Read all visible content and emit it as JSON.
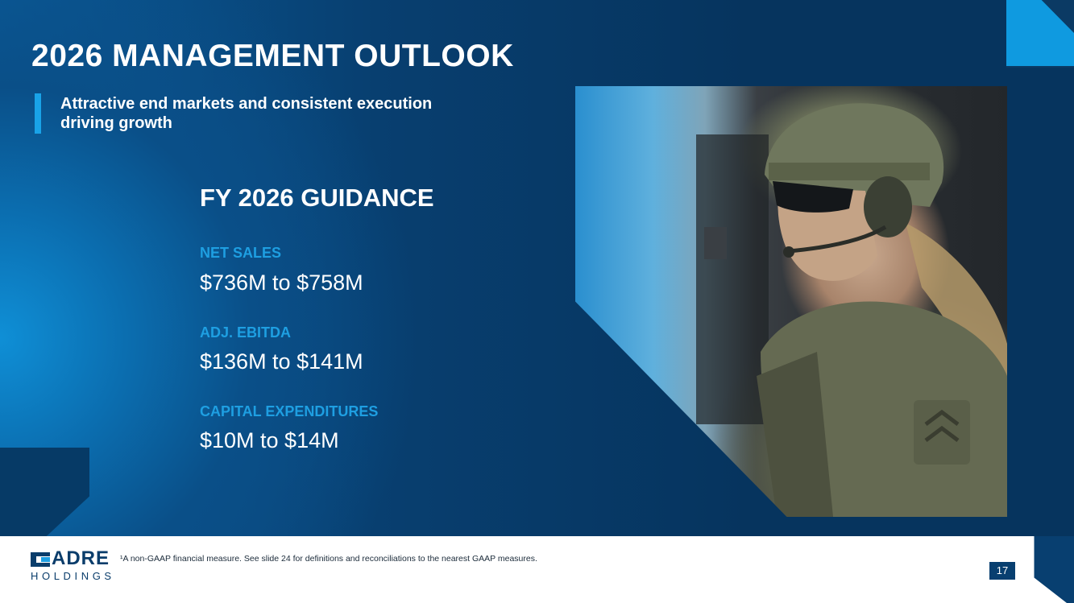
{
  "slide": {
    "title": "2026 MANAGEMENT OUTLOOK",
    "subtitle": "Attractive end markets and consistent execution driving growth"
  },
  "guidance": {
    "title": "FY 2026 GUIDANCE",
    "metrics": [
      {
        "label": "NET SALES",
        "value": "$736M to $758M"
      },
      {
        "label": "ADJ. EBITDA",
        "value": "$136M to $141M"
      },
      {
        "label": "CAPITAL EXPENDITURES",
        "value": "$10M to $14M"
      }
    ]
  },
  "footer": {
    "logo_main": "ADRE",
    "logo_sub": "HOLDINGS",
    "footnote": "¹A non-GAAP financial measure. See slide 24 for definitions and reconciliations to the nearest GAAP measures.",
    "page_number": "17"
  },
  "colors": {
    "background": "#083f70",
    "accent": "#1e9fe2",
    "logo": "#0a3d6b"
  },
  "images": {
    "photo": "tactical-officer-photo"
  }
}
